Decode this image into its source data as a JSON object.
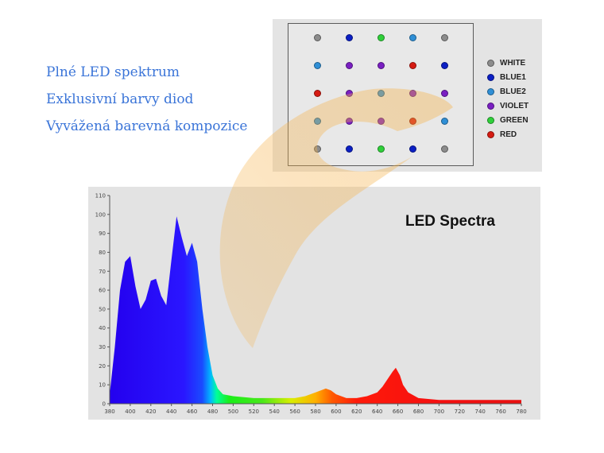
{
  "features": [
    "Plné LED spektrum",
    "Exklusivní barvy diod",
    "Vyvážená barevná kompozice"
  ],
  "led_panel": {
    "rows": [
      [
        "WHITE",
        "BLUE1",
        "GREEN",
        "BLUE2",
        "WHITE"
      ],
      [
        "BLUE2",
        "VIOLET",
        "VIOLET",
        "RED",
        "BLUE1"
      ],
      [
        "RED",
        "VIOLET",
        "BLUE2",
        "VIOLET",
        "VIOLET"
      ],
      [
        "BLUE2",
        "VIOLET",
        "VIOLET",
        "RED",
        "BLUE2"
      ],
      [
        "WHITE",
        "BLUE1",
        "GREEN",
        "BLUE1",
        "WHITE"
      ]
    ],
    "legend": [
      {
        "label": "WHITE",
        "color": "#8c8c8c"
      },
      {
        "label": "BLUE1",
        "color": "#0b1fc4"
      },
      {
        "label": "BLUE2",
        "color": "#2f8fd6"
      },
      {
        "label": "VIOLET",
        "color": "#7a1fc2"
      },
      {
        "label": "GREEN",
        "color": "#2fd03a"
      },
      {
        "label": "RED",
        "color": "#d61b12"
      }
    ]
  },
  "chart_data": {
    "type": "area",
    "title": "LED Spectra",
    "xlabel": "",
    "ylabel": "",
    "xlim": [
      380,
      780
    ],
    "ylim": [
      0,
      110
    ],
    "xticks": [
      380,
      400,
      420,
      440,
      460,
      480,
      500,
      520,
      540,
      560,
      580,
      600,
      620,
      640,
      660,
      680,
      700,
      720,
      740,
      760,
      780
    ],
    "yticks": [
      0,
      10,
      20,
      30,
      40,
      50,
      60,
      70,
      80,
      90,
      100,
      110
    ],
    "grid": false,
    "x": [
      380,
      385,
      390,
      395,
      400,
      405,
      410,
      415,
      420,
      425,
      430,
      435,
      440,
      445,
      450,
      455,
      460,
      465,
      470,
      475,
      480,
      485,
      490,
      500,
      520,
      540,
      560,
      570,
      580,
      590,
      595,
      600,
      610,
      620,
      630,
      640,
      645,
      650,
      655,
      658,
      662,
      665,
      670,
      680,
      700,
      720,
      740,
      760,
      780
    ],
    "values": [
      5,
      30,
      60,
      75,
      78,
      62,
      50,
      55,
      65,
      66,
      57,
      52,
      76,
      99,
      88,
      78,
      85,
      75,
      50,
      30,
      15,
      8,
      5,
      4,
      3,
      3,
      3,
      4,
      6,
      8,
      7,
      5,
      3,
      3,
      4,
      6,
      9,
      13,
      17,
      19,
      15,
      10,
      6,
      3,
      2,
      2,
      2,
      2,
      2
    ]
  }
}
